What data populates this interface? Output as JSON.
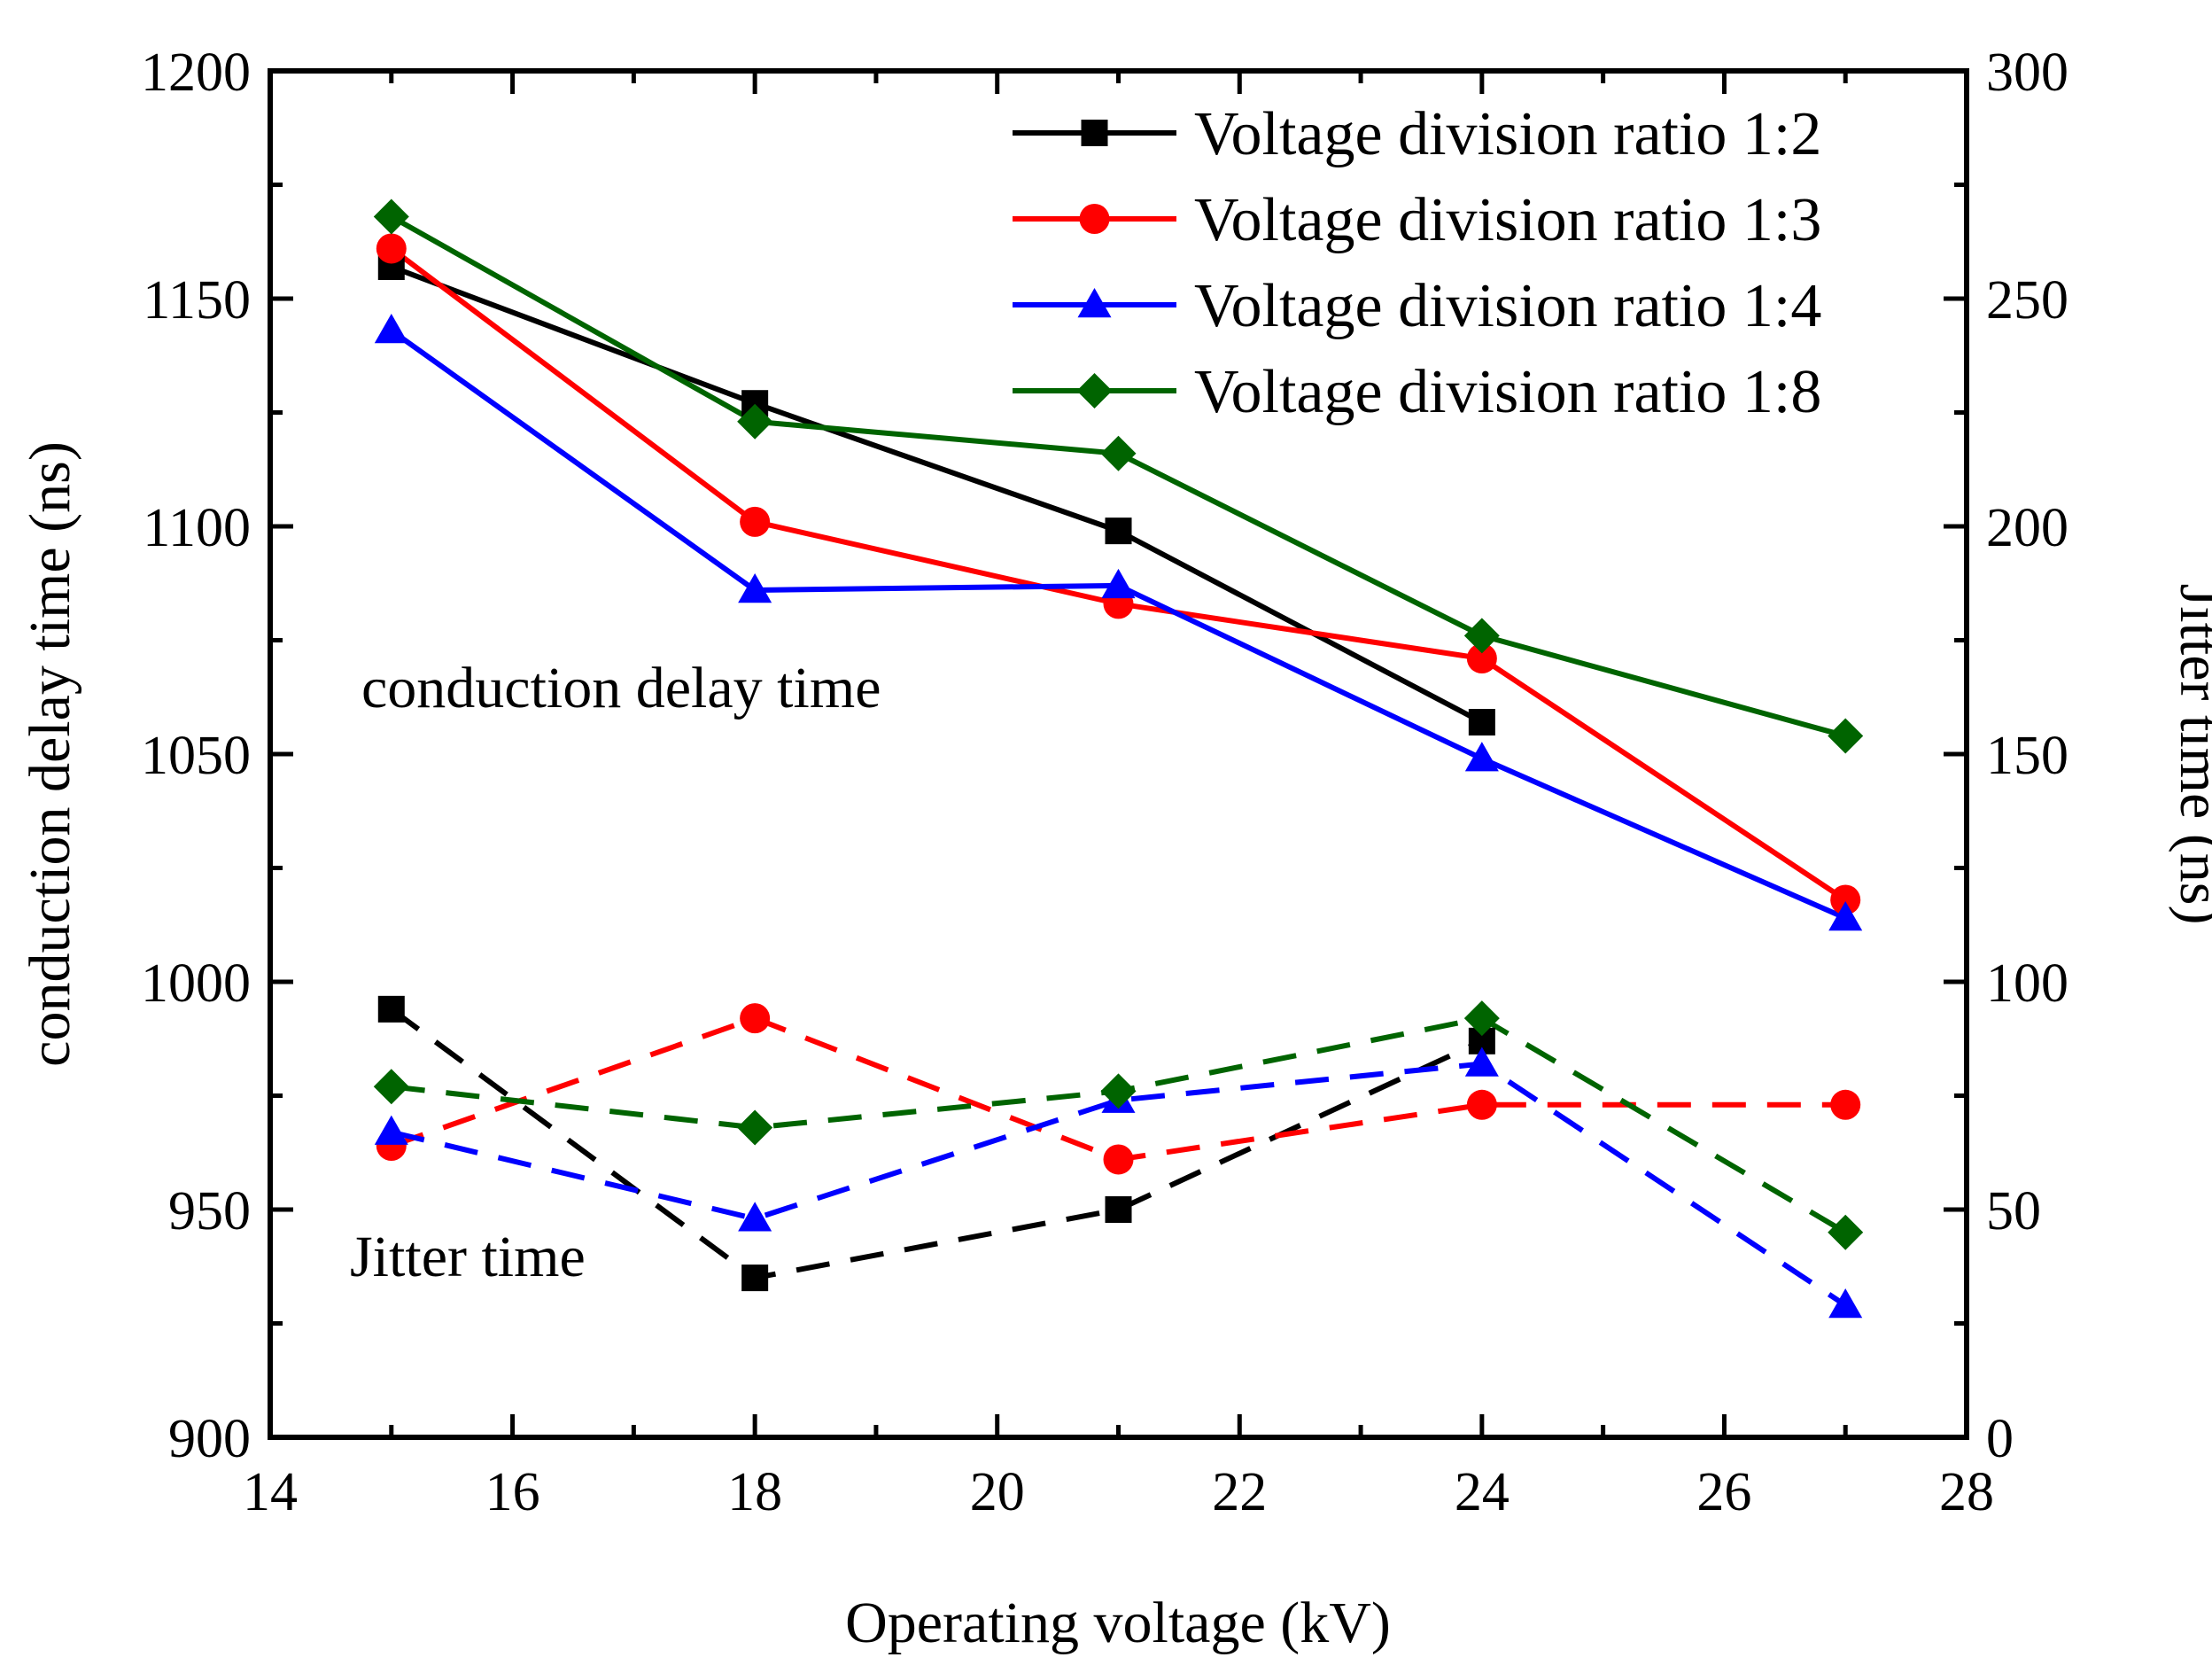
{
  "chart_data": {
    "type": "line",
    "xlabel": "Operating voltage (kV)",
    "ylabel_left": "conduction delay time (ns)",
    "ylabel_right": "Jitter time (ns)",
    "xlim": [
      14,
      28
    ],
    "xticks": [
      14,
      16,
      18,
      20,
      22,
      24,
      26,
      28
    ],
    "ylim_left": [
      900,
      1200
    ],
    "yticks_left": [
      900,
      950,
      1000,
      1050,
      1100,
      1150,
      1200
    ],
    "ylim_right": [
      0,
      300
    ],
    "yticks_right": [
      0,
      50,
      100,
      150,
      200,
      250,
      300
    ],
    "x": [
      15,
      18,
      21,
      24,
      27
    ],
    "legend_position": "top-right",
    "annotations": [
      "conduction delay time",
      "Jitter time"
    ],
    "series": [
      {
        "name": "Voltage division ratio 1:2",
        "color": "#000000",
        "marker": "square",
        "delay_x": [
          15,
          18,
          21,
          24
        ],
        "delay": [
          1157,
          1127,
          1099,
          1057
        ],
        "jitter_x": [
          15,
          18,
          21,
          24
        ],
        "jitter": [
          94,
          35,
          50,
          87
        ]
      },
      {
        "name": "Voltage division ratio 1:3",
        "color": "#ff0000",
        "marker": "circle",
        "delay_x": [
          15,
          18,
          21,
          24,
          27
        ],
        "delay": [
          1161,
          1101,
          1083,
          1071,
          1018
        ],
        "jitter_x": [
          15,
          18,
          21,
          24,
          27
        ],
        "jitter": [
          64,
          92,
          61,
          73,
          73
        ]
      },
      {
        "name": "Voltage division ratio 1:4",
        "color": "#0000ff",
        "marker": "triangle",
        "delay_x": [
          15,
          18,
          21,
          24,
          27
        ],
        "delay": [
          1143,
          1086,
          1087,
          1049,
          1014
        ],
        "jitter_x": [
          15,
          18,
          21,
          24,
          27
        ],
        "jitter": [
          67,
          48,
          74,
          82,
          29
        ]
      },
      {
        "name": "Voltage division ratio 1:8",
        "color": "#006400",
        "marker": "diamond",
        "delay_x": [
          15,
          18,
          21,
          24,
          27
        ],
        "delay": [
          1168,
          1123,
          1116,
          1076,
          1054
        ],
        "jitter_x": [
          15,
          18,
          21,
          24,
          27
        ],
        "jitter": [
          77,
          68,
          76,
          92,
          45
        ]
      }
    ]
  }
}
